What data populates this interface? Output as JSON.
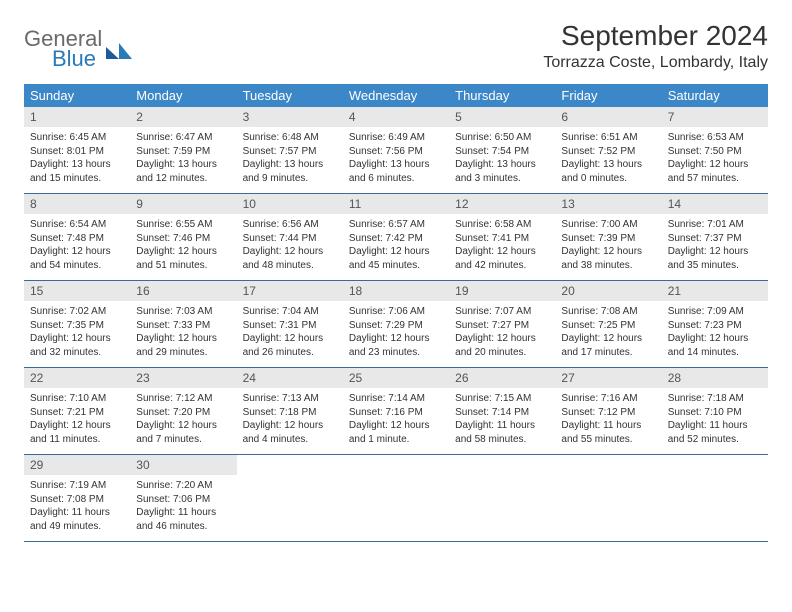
{
  "logo": {
    "top": "General",
    "bottom": "Blue"
  },
  "title": "September 2024",
  "location": "Torrazza Coste, Lombardy, Italy",
  "colors": {
    "header_bg": "#3b87c8",
    "header_text": "#ffffff",
    "daynum_bg": "#e8e8e8",
    "week_border": "#3b6a9a",
    "logo_gray": "#6a6a6a",
    "logo_blue": "#2a7ab8"
  },
  "day_headers": [
    "Sunday",
    "Monday",
    "Tuesday",
    "Wednesday",
    "Thursday",
    "Friday",
    "Saturday"
  ],
  "weeks": [
    [
      {
        "n": "1",
        "sr": "Sunrise: 6:45 AM",
        "ss": "Sunset: 8:01 PM",
        "d1": "Daylight: 13 hours",
        "d2": "and 15 minutes."
      },
      {
        "n": "2",
        "sr": "Sunrise: 6:47 AM",
        "ss": "Sunset: 7:59 PM",
        "d1": "Daylight: 13 hours",
        "d2": "and 12 minutes."
      },
      {
        "n": "3",
        "sr": "Sunrise: 6:48 AM",
        "ss": "Sunset: 7:57 PM",
        "d1": "Daylight: 13 hours",
        "d2": "and 9 minutes."
      },
      {
        "n": "4",
        "sr": "Sunrise: 6:49 AM",
        "ss": "Sunset: 7:56 PM",
        "d1": "Daylight: 13 hours",
        "d2": "and 6 minutes."
      },
      {
        "n": "5",
        "sr": "Sunrise: 6:50 AM",
        "ss": "Sunset: 7:54 PM",
        "d1": "Daylight: 13 hours",
        "d2": "and 3 minutes."
      },
      {
        "n": "6",
        "sr": "Sunrise: 6:51 AM",
        "ss": "Sunset: 7:52 PM",
        "d1": "Daylight: 13 hours",
        "d2": "and 0 minutes."
      },
      {
        "n": "7",
        "sr": "Sunrise: 6:53 AM",
        "ss": "Sunset: 7:50 PM",
        "d1": "Daylight: 12 hours",
        "d2": "and 57 minutes."
      }
    ],
    [
      {
        "n": "8",
        "sr": "Sunrise: 6:54 AM",
        "ss": "Sunset: 7:48 PM",
        "d1": "Daylight: 12 hours",
        "d2": "and 54 minutes."
      },
      {
        "n": "9",
        "sr": "Sunrise: 6:55 AM",
        "ss": "Sunset: 7:46 PM",
        "d1": "Daylight: 12 hours",
        "d2": "and 51 minutes."
      },
      {
        "n": "10",
        "sr": "Sunrise: 6:56 AM",
        "ss": "Sunset: 7:44 PM",
        "d1": "Daylight: 12 hours",
        "d2": "and 48 minutes."
      },
      {
        "n": "11",
        "sr": "Sunrise: 6:57 AM",
        "ss": "Sunset: 7:42 PM",
        "d1": "Daylight: 12 hours",
        "d2": "and 45 minutes."
      },
      {
        "n": "12",
        "sr": "Sunrise: 6:58 AM",
        "ss": "Sunset: 7:41 PM",
        "d1": "Daylight: 12 hours",
        "d2": "and 42 minutes."
      },
      {
        "n": "13",
        "sr": "Sunrise: 7:00 AM",
        "ss": "Sunset: 7:39 PM",
        "d1": "Daylight: 12 hours",
        "d2": "and 38 minutes."
      },
      {
        "n": "14",
        "sr": "Sunrise: 7:01 AM",
        "ss": "Sunset: 7:37 PM",
        "d1": "Daylight: 12 hours",
        "d2": "and 35 minutes."
      }
    ],
    [
      {
        "n": "15",
        "sr": "Sunrise: 7:02 AM",
        "ss": "Sunset: 7:35 PM",
        "d1": "Daylight: 12 hours",
        "d2": "and 32 minutes."
      },
      {
        "n": "16",
        "sr": "Sunrise: 7:03 AM",
        "ss": "Sunset: 7:33 PM",
        "d1": "Daylight: 12 hours",
        "d2": "and 29 minutes."
      },
      {
        "n": "17",
        "sr": "Sunrise: 7:04 AM",
        "ss": "Sunset: 7:31 PM",
        "d1": "Daylight: 12 hours",
        "d2": "and 26 minutes."
      },
      {
        "n": "18",
        "sr": "Sunrise: 7:06 AM",
        "ss": "Sunset: 7:29 PM",
        "d1": "Daylight: 12 hours",
        "d2": "and 23 minutes."
      },
      {
        "n": "19",
        "sr": "Sunrise: 7:07 AM",
        "ss": "Sunset: 7:27 PM",
        "d1": "Daylight: 12 hours",
        "d2": "and 20 minutes."
      },
      {
        "n": "20",
        "sr": "Sunrise: 7:08 AM",
        "ss": "Sunset: 7:25 PM",
        "d1": "Daylight: 12 hours",
        "d2": "and 17 minutes."
      },
      {
        "n": "21",
        "sr": "Sunrise: 7:09 AM",
        "ss": "Sunset: 7:23 PM",
        "d1": "Daylight: 12 hours",
        "d2": "and 14 minutes."
      }
    ],
    [
      {
        "n": "22",
        "sr": "Sunrise: 7:10 AM",
        "ss": "Sunset: 7:21 PM",
        "d1": "Daylight: 12 hours",
        "d2": "and 11 minutes."
      },
      {
        "n": "23",
        "sr": "Sunrise: 7:12 AM",
        "ss": "Sunset: 7:20 PM",
        "d1": "Daylight: 12 hours",
        "d2": "and 7 minutes."
      },
      {
        "n": "24",
        "sr": "Sunrise: 7:13 AM",
        "ss": "Sunset: 7:18 PM",
        "d1": "Daylight: 12 hours",
        "d2": "and 4 minutes."
      },
      {
        "n": "25",
        "sr": "Sunrise: 7:14 AM",
        "ss": "Sunset: 7:16 PM",
        "d1": "Daylight: 12 hours",
        "d2": "and 1 minute."
      },
      {
        "n": "26",
        "sr": "Sunrise: 7:15 AM",
        "ss": "Sunset: 7:14 PM",
        "d1": "Daylight: 11 hours",
        "d2": "and 58 minutes."
      },
      {
        "n": "27",
        "sr": "Sunrise: 7:16 AM",
        "ss": "Sunset: 7:12 PM",
        "d1": "Daylight: 11 hours",
        "d2": "and 55 minutes."
      },
      {
        "n": "28",
        "sr": "Sunrise: 7:18 AM",
        "ss": "Sunset: 7:10 PM",
        "d1": "Daylight: 11 hours",
        "d2": "and 52 minutes."
      }
    ],
    [
      {
        "n": "29",
        "sr": "Sunrise: 7:19 AM",
        "ss": "Sunset: 7:08 PM",
        "d1": "Daylight: 11 hours",
        "d2": "and 49 minutes."
      },
      {
        "n": "30",
        "sr": "Sunrise: 7:20 AM",
        "ss": "Sunset: 7:06 PM",
        "d1": "Daylight: 11 hours",
        "d2": "and 46 minutes."
      },
      null,
      null,
      null,
      null,
      null
    ]
  ]
}
